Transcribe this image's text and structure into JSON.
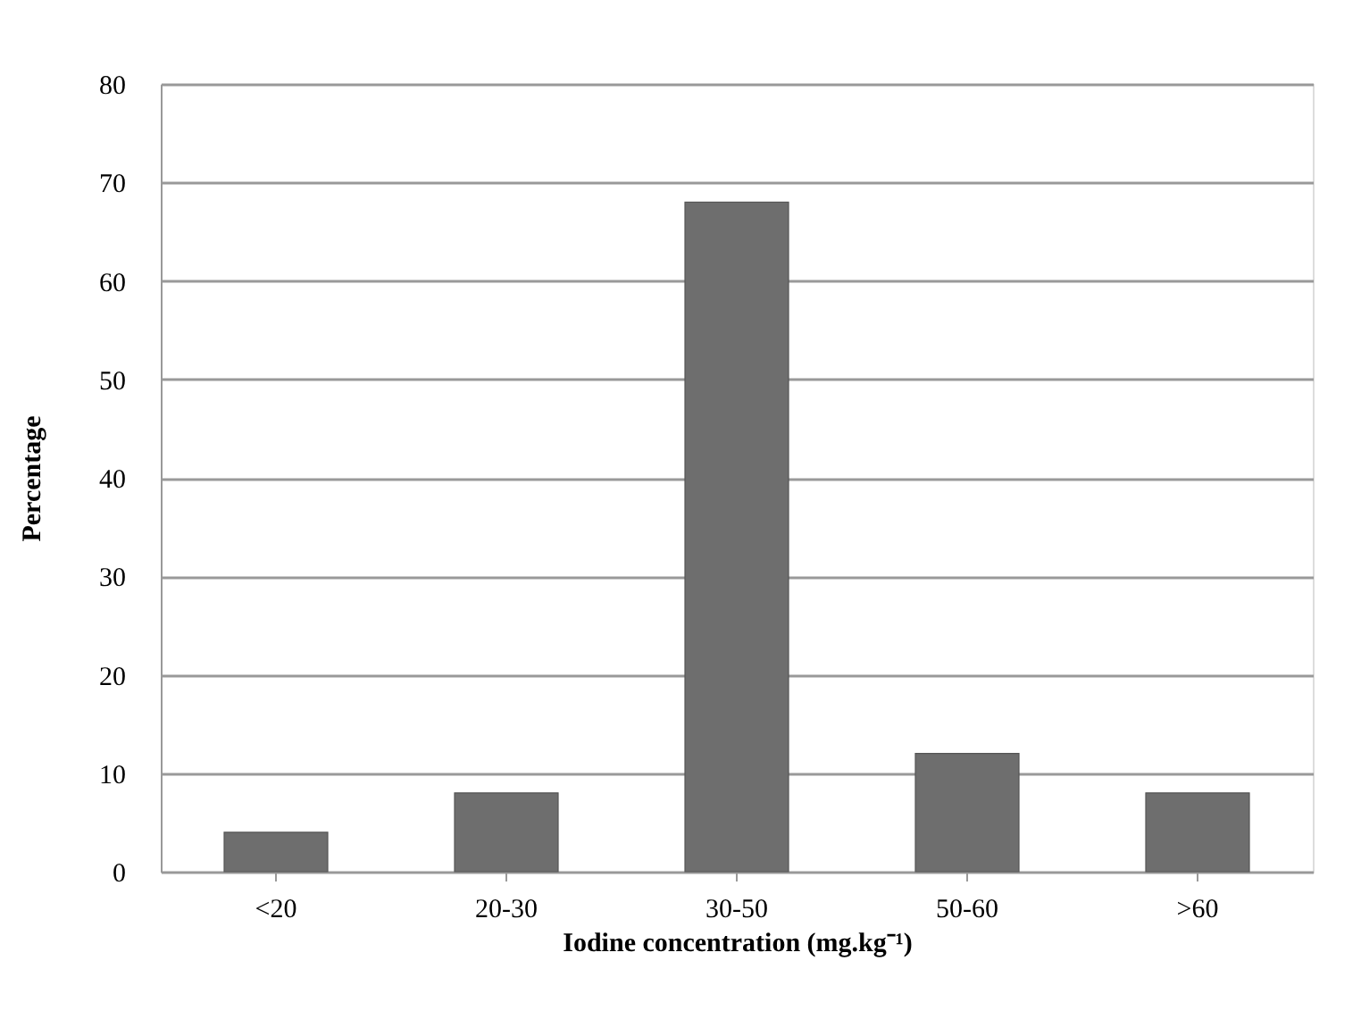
{
  "chart_data": {
    "type": "bar",
    "xlabel": "Iodine concentration (mg.kg⁻¹)",
    "ylabel": "Percentage",
    "categories": [
      "<20",
      "20-30",
      "30-50",
      "50-60",
      ">60"
    ],
    "values": [
      4,
      8,
      68,
      12,
      8
    ],
    "color": "#6e6e6e",
    "ylim": [
      0,
      80
    ],
    "yticks": [
      0,
      10,
      20,
      30,
      40,
      50,
      60,
      70,
      80
    ],
    "grid": "y"
  }
}
